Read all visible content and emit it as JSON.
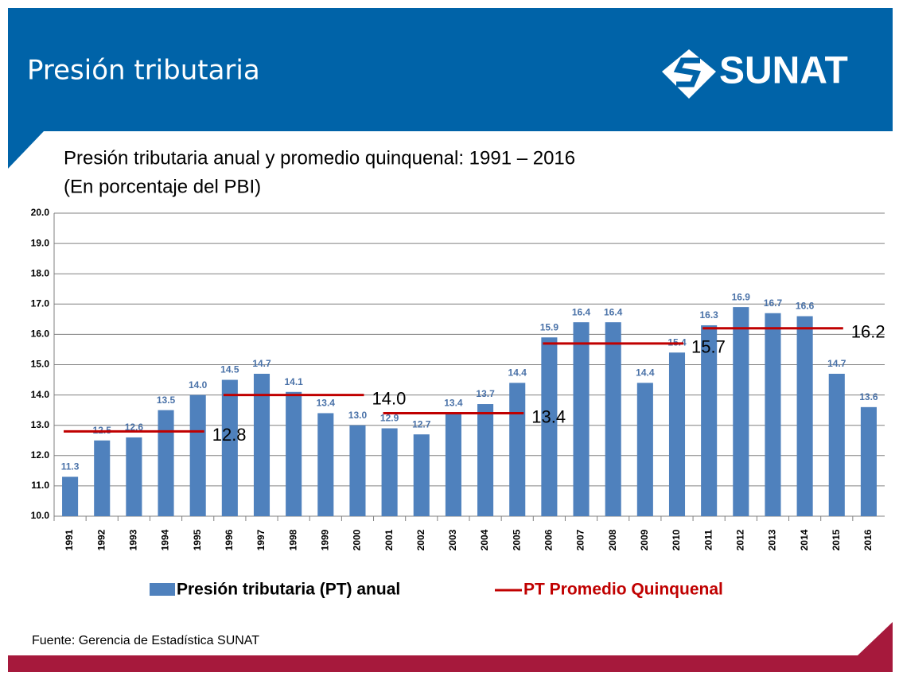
{
  "header": {
    "title": "Presión tributaria",
    "logo": "SUNAT"
  },
  "source": "Fuente: Gerencia de Estadística SUNAT",
  "chart_data": {
    "type": "bar",
    "title": "Presión tributaria anual y promedio quinquenal: 1991 – 2016",
    "subtitle": "(En porcentaje del PBI)",
    "categories": [
      "1991",
      "1992",
      "1993",
      "1994",
      "1995",
      "1996",
      "1997",
      "1998",
      "1999",
      "2000",
      "2001",
      "2002",
      "2003",
      "2004",
      "2005",
      "2006",
      "2007",
      "2008",
      "2009",
      "2010",
      "2011",
      "2012",
      "2013",
      "2014",
      "2015",
      "2016"
    ],
    "series": [
      {
        "name": "Presión tributaria (PT) anual",
        "color": "#4f81bd",
        "values": [
          11.3,
          12.5,
          12.6,
          13.5,
          14.0,
          14.5,
          14.7,
          14.1,
          13.4,
          13.0,
          12.9,
          12.7,
          13.4,
          13.7,
          14.4,
          15.9,
          16.4,
          16.4,
          14.4,
          15.4,
          16.3,
          16.9,
          16.7,
          16.6,
          14.7,
          13.6
        ],
        "value_labels": [
          "11.3",
          "12.5",
          "12.6",
          "13.5",
          "14.0",
          "14.5",
          "14.7",
          "14.1",
          "13.4",
          "13.0",
          "12.9",
          "12.7",
          "13.4",
          "13.7",
          "14.4",
          "15.9",
          "16.4",
          "16.4",
          "14.4",
          "15.4",
          "16.3",
          "16.9",
          "16.7",
          "16.6",
          "14.7",
          "13.6"
        ]
      },
      {
        "name": "PT Promedio Quinquenal",
        "color": "#c00000",
        "type": "segment",
        "segments": [
          {
            "from": "1991",
            "to": "1995",
            "value": 12.8,
            "label": "12.8"
          },
          {
            "from": "1996",
            "to": "2000",
            "value": 14.0,
            "label": "14.0"
          },
          {
            "from": "2001",
            "to": "2005",
            "value": 13.4,
            "label": "13.4"
          },
          {
            "from": "2006",
            "to": "2010",
            "value": 15.7,
            "label": "15.7"
          },
          {
            "from": "2011",
            "to": "2015",
            "value": 16.2,
            "label": "16.2"
          }
        ]
      }
    ],
    "ylim": [
      10,
      20
    ],
    "yticks": [
      {
        "value": 10,
        "label": "10.0"
      },
      {
        "value": 11,
        "label": "11.0"
      },
      {
        "value": 12,
        "label": "12.0"
      },
      {
        "value": 13,
        "label": "13.0"
      },
      {
        "value": 14,
        "label": "14.0"
      },
      {
        "value": 15,
        "label": "15.0"
      },
      {
        "value": 16,
        "label": "16.0"
      },
      {
        "value": 17,
        "label": "17.0"
      },
      {
        "value": 18,
        "label": "18.0"
      },
      {
        "value": 19,
        "label": "19.0"
      },
      {
        "value": 20,
        "label": "20.0"
      }
    ],
    "grid": true
  }
}
